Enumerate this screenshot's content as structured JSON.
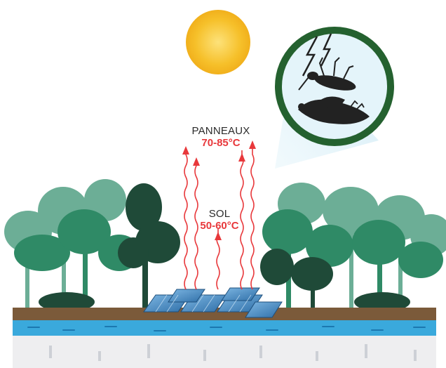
{
  "labels": {
    "panels": {
      "name": "PANNEAUX",
      "temperature": "70-85°C"
    },
    "soil": {
      "name": "SOL",
      "temperature": "50-60°C"
    }
  },
  "colors": {
    "sun": "#f6c02a",
    "heat_arrows": "#e8383b",
    "magnifier_ring": "#24612f",
    "magnifier_beam": "#d4eef7",
    "solar_panels": "#4b8fc7",
    "soil": "#7b5a3a",
    "water": "#3aa9dc",
    "forest_dark": "#1f4a38",
    "forest_mid": "#2f8a66",
    "forest_light": "#6cae96"
  },
  "icons": {
    "sun": "sun-icon",
    "lightning": "lightning-icon",
    "dead_insect": "dead-insect-icon",
    "dead_bird": "dead-bird-icon"
  }
}
